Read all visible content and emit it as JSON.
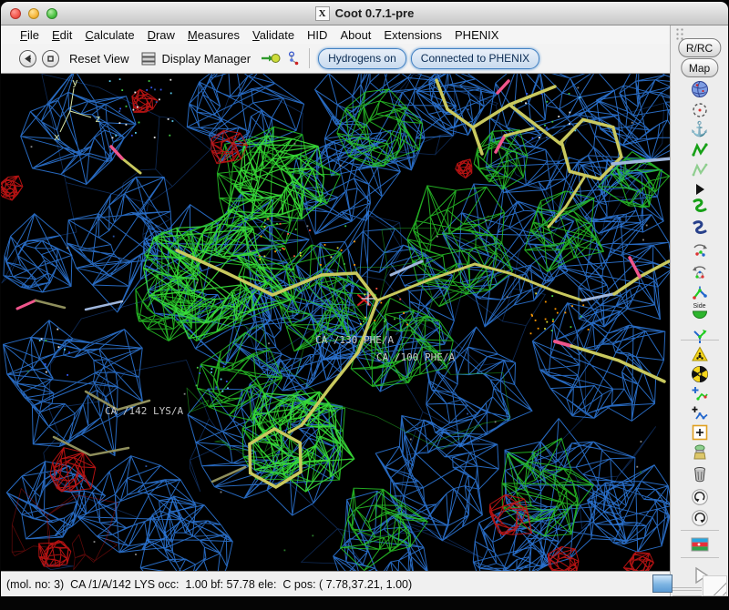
{
  "window": {
    "title": "Coot 0.7.1-pre",
    "icon_glyph": "X"
  },
  "menu_bar": {
    "items": [
      {
        "label": "File",
        "mnemonic": true
      },
      {
        "label": "Edit",
        "mnemonic": true
      },
      {
        "label": "Calculate",
        "mnemonic": true
      },
      {
        "label": "Draw",
        "mnemonic": true
      },
      {
        "label": "Measures",
        "mnemonic": true
      },
      {
        "label": "Validate",
        "mnemonic": true
      },
      {
        "label": "HID",
        "mnemonic": false
      },
      {
        "label": "About",
        "mnemonic": false
      },
      {
        "label": "Extensions",
        "mnemonic": false
      },
      {
        "label": "PHENIX",
        "mnemonic": false
      }
    ]
  },
  "toolbar": {
    "reset_view": "Reset View",
    "display_manager": "Display Manager",
    "toggle_buttons": [
      {
        "label": "Hydrogens on"
      },
      {
        "label": "Connected to PHENIX"
      }
    ]
  },
  "right_panel": {
    "buttons": [
      {
        "label": "R/RC"
      },
      {
        "label": "Map"
      }
    ],
    "side_flip_label": "Side"
  },
  "viewport": {
    "axis_labels": {
      "x": "x",
      "y": "y",
      "z": "z"
    },
    "atom_labels": [
      {
        "text": "CA /130 PHE/A"
      },
      {
        "text": "CA /100 PHE/A"
      },
      {
        "text": "CA /142 LYS/A"
      }
    ],
    "colors": {
      "background": "#000000",
      "map_blue": "#2e7ade",
      "map_blue_dim": "#1c4f9e",
      "map_green": "#28c828",
      "map_green_bright": "#3ae23a",
      "map_red": "#c41414",
      "carbon": "#c9c95e",
      "carbon_dim": "#8f8f5c",
      "pale": "#9fb6dc",
      "pink": "#f0558c",
      "axes": "#d8e6aa",
      "label": "#c6c6c6"
    }
  },
  "status_bar": {
    "text": "(mol. no: 3)  CA /1/A/142 LYS occ:  1.00 bf: 57.78 ele:  C pos: ( 7.78,37.21, 1.00)"
  }
}
